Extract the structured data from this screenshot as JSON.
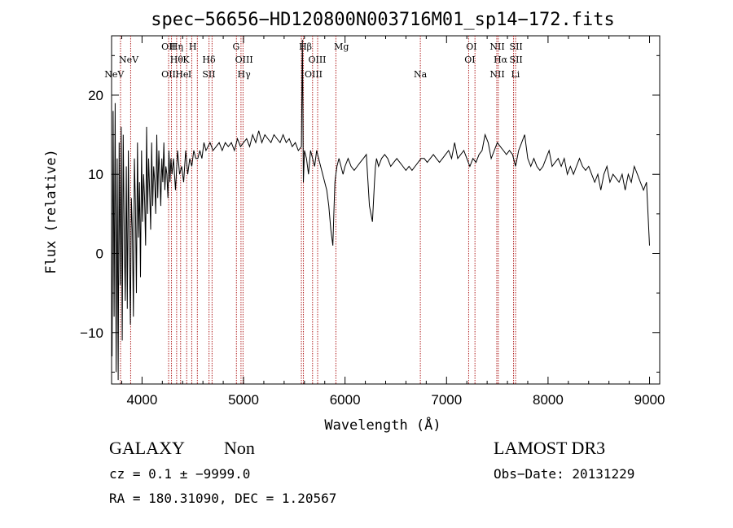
{
  "chart_data": {
    "type": "line",
    "title": "spec−56656−HD120800N003716M01_sp14−172.fits",
    "xlabel": "Wavelength (Å)",
    "ylabel": "Flux (relative)",
    "xlim": [
      3700,
      9100
    ],
    "ylim": [
      -16.5,
      27.5
    ],
    "xticks": [
      4000,
      5000,
      6000,
      7000,
      8000,
      9000
    ],
    "yticks": [
      -10,
      0,
      10,
      20
    ],
    "grid": false,
    "series": [
      {
        "x": [
          3705,
          3715,
          3725,
          3735,
          3745,
          3755,
          3765,
          3775,
          3785,
          3795,
          3805,
          3815,
          3825,
          3835,
          3845,
          3855,
          3865,
          3875,
          3885,
          3895,
          3905,
          3915,
          3925,
          3935,
          3945,
          3955,
          3965,
          3975,
          3985,
          3995,
          4005,
          4015,
          4025,
          4035,
          4045,
          4055,
          4065,
          4075,
          4085,
          4095,
          4105,
          4115,
          4125,
          4135,
          4145,
          4155,
          4165,
          4175,
          4185,
          4195,
          4205,
          4215,
          4225,
          4235,
          4245,
          4255,
          4265,
          4275,
          4285,
          4295,
          4310,
          4330,
          4350,
          4370,
          4390,
          4410,
          4430,
          4450,
          4470,
          4490,
          4510,
          4530,
          4550,
          4570,
          4590,
          4610,
          4630,
          4650,
          4670,
          4700,
          4730,
          4760,
          4790,
          4820,
          4850,
          4880,
          4910,
          4940,
          4970,
          5000,
          5030,
          5060,
          5090,
          5120,
          5150,
          5180,
          5210,
          5240,
          5270,
          5300,
          5330,
          5360,
          5390,
          5420,
          5450,
          5480,
          5510,
          5540,
          5570,
          5580,
          5590,
          5600,
          5620,
          5640,
          5660,
          5680,
          5700,
          5720,
          5740,
          5760,
          5780,
          5800,
          5820,
          5840,
          5860,
          5880,
          5890,
          5900,
          5910,
          5920,
          5940,
          5960,
          5980,
          6000,
          6030,
          6060,
          6090,
          6120,
          6150,
          6180,
          6210,
          6240,
          6270,
          6290,
          6300,
          6310,
          6330,
          6360,
          6390,
          6420,
          6450,
          6480,
          6510,
          6540,
          6570,
          6600,
          6630,
          6660,
          6690,
          6720,
          6750,
          6780,
          6810,
          6840,
          6870,
          6900,
          6930,
          6960,
          6990,
          7020,
          7050,
          7080,
          7110,
          7140,
          7170,
          7200,
          7230,
          7260,
          7290,
          7320,
          7350,
          7380,
          7410,
          7440,
          7470,
          7500,
          7530,
          7560,
          7590,
          7620,
          7650,
          7680,
          7710,
          7740,
          7770,
          7800,
          7830,
          7860,
          7890,
          7920,
          7950,
          7980,
          8010,
          8040,
          8070,
          8100,
          8130,
          8160,
          8190,
          8220,
          8250,
          8280,
          8310,
          8340,
          8370,
          8400,
          8430,
          8460,
          8490,
          8520,
          8550,
          8580,
          8610,
          8640,
          8670,
          8700,
          8730,
          8760,
          8790,
          8820,
          8850,
          8880,
          8910,
          8940,
          8970,
          9000
        ],
        "y": [
          -13,
          18,
          -8,
          19,
          -15,
          12,
          -16,
          14,
          -4,
          16,
          -11,
          15,
          2,
          -6,
          11,
          -7,
          13,
          1,
          -9,
          7,
          3,
          -8,
          12,
          6,
          -5,
          14,
          2,
          9,
          -3,
          13,
          4,
          10,
          7,
          1,
          16,
          5,
          12,
          8,
          3,
          14,
          6,
          11,
          9,
          5,
          15,
          7,
          13,
          10,
          6,
          12,
          9,
          14,
          8,
          11,
          10,
          7,
          13,
          9,
          12,
          10,
          12,
          8,
          13,
          10,
          11,
          9,
          13,
          10,
          12,
          11,
          13,
          12,
          12,
          13,
          12,
          14,
          13,
          13.5,
          14,
          13,
          13.5,
          14,
          13,
          14,
          13.5,
          14,
          13,
          14.5,
          13.5,
          14,
          14.5,
          13.5,
          15,
          14,
          15.5,
          14,
          15,
          14.5,
          14,
          15,
          14.5,
          14,
          15,
          14,
          14.5,
          13.5,
          14,
          13,
          13.5,
          27,
          9,
          13,
          12,
          10,
          13,
          12,
          11,
          13,
          12,
          11,
          10,
          9,
          8,
          6,
          3,
          1,
          5,
          9,
          10,
          11,
          12,
          11,
          10,
          11,
          12,
          11,
          10.5,
          11,
          11.5,
          12,
          12.5,
          6,
          4,
          9,
          11,
          12,
          11,
          12,
          12.5,
          12,
          11,
          11.5,
          12,
          11.5,
          11,
          10.5,
          11,
          10.5,
          11,
          11.5,
          12,
          12,
          11.5,
          12,
          12.5,
          12,
          11.5,
          12,
          12.5,
          13,
          12,
          14,
          12,
          12.5,
          13,
          12,
          11,
          12,
          11.5,
          12.5,
          13,
          15,
          14,
          12,
          13,
          14,
          13.5,
          13,
          12.5,
          13,
          12.5,
          11,
          13,
          14,
          15,
          12,
          11,
          12,
          11,
          10.5,
          11,
          12,
          13,
          11,
          11.5,
          12,
          11,
          12,
          10,
          11,
          10,
          11,
          12,
          11,
          10.5,
          11,
          10,
          9,
          10,
          8,
          10,
          11,
          9,
          10,
          9.5,
          9,
          10,
          8,
          10,
          9,
          11,
          10,
          9,
          8,
          9,
          1
        ]
      }
    ],
    "emission_lines": [
      {
        "name": "NeV",
        "x": 3726,
        "row": 3
      },
      {
        "name": "NeV",
        "x": 3869,
        "row": 2
      },
      {
        "name": "OII",
        "x": 4262,
        "row": 1
      },
      {
        "name": "OII",
        "x": 4262,
        "row": 3
      },
      {
        "name": "Hη",
        "x": 4341,
        "row": 1
      },
      {
        "name": "Hθ",
        "x": 4341,
        "row": 2
      },
      {
        "name": "He",
        "x": 4393,
        "row": 3
      },
      {
        "name": "I",
        "x": 4471,
        "row": 3
      },
      {
        "name": "K",
        "x": 4434,
        "row": 2
      },
      {
        "name": "H",
        "x": 4500,
        "row": 1
      },
      {
        "name": "Hδ",
        "x": 4659,
        "row": 2
      },
      {
        "name": "SII",
        "x": 4659,
        "row": 3
      },
      {
        "name": "G",
        "x": 4927,
        "row": 1
      },
      {
        "name": "OIII",
        "x": 5005,
        "row": 2
      },
      {
        "name": "Hγ",
        "x": 5005,
        "row": 3
      },
      {
        "name": "Hβ",
        "x": 5610,
        "row": 1
      },
      {
        "name": "OIII",
        "x": 5726,
        "row": 2
      },
      {
        "name": "OIII",
        "x": 5690,
        "row": 3
      },
      {
        "name": "Mg",
        "x": 5965,
        "row": 1
      },
      {
        "name": "Na",
        "x": 6742,
        "row": 3
      },
      {
        "name": "OI",
        "x": 7246,
        "row": 1
      },
      {
        "name": "OI",
        "x": 7230,
        "row": 2
      },
      {
        "name": "NII",
        "x": 7500,
        "row": 1
      },
      {
        "name": "Hα",
        "x": 7532,
        "row": 2
      },
      {
        "name": "NII",
        "x": 7500,
        "row": 3
      },
      {
        "name": "SII",
        "x": 7685,
        "row": 1
      },
      {
        "name": "SII",
        "x": 7685,
        "row": 2
      },
      {
        "name": "Li",
        "x": 7679,
        "row": 3
      }
    ],
    "marker_lines_x": [
      3788,
      3888,
      4262,
      4290,
      4341,
      4380,
      4440,
      4490,
      4545,
      4660,
      4690,
      4930,
      4975,
      4995,
      5570,
      5590,
      5680,
      5730,
      5910,
      6742,
      7218,
      7280,
      7495,
      7510,
      7660,
      7680
    ]
  },
  "info": {
    "object_type": "GALAXY",
    "subclass": "Non",
    "survey": "LAMOST DR3",
    "cz": "cz = 0.1 ± −9999.0",
    "obs_date": "Obs−Date: 20131229",
    "radec": "RA = 180.31090, DEC =    1.20567"
  }
}
